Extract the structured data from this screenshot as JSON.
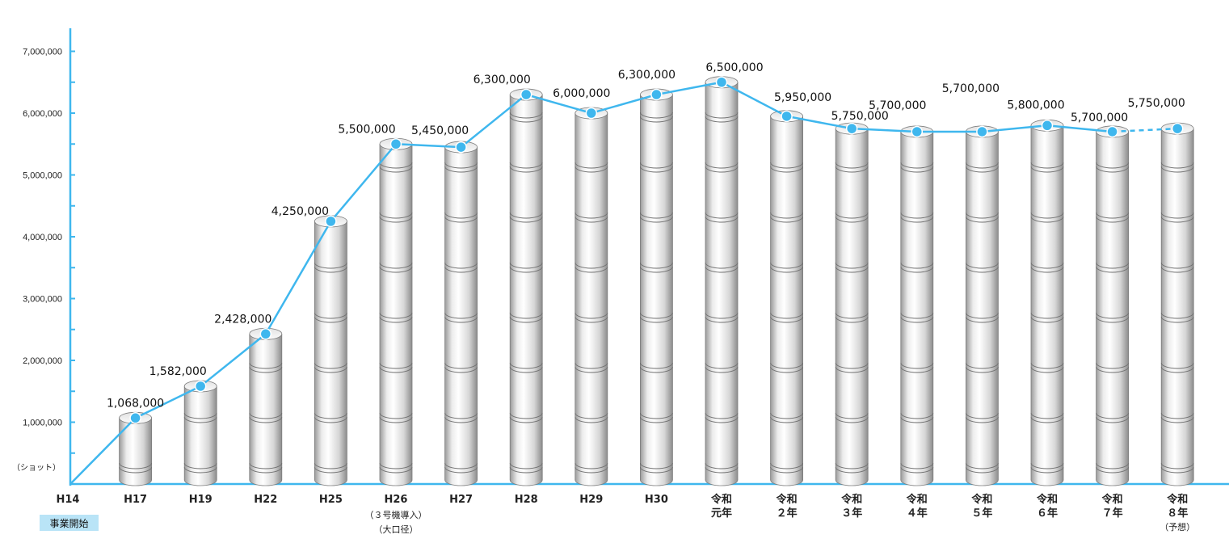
{
  "chart_data": {
    "type": "bar",
    "unit_label": "（ショット）",
    "colors": {
      "line": "#3fb7ee",
      "axis": "#3fb7ee",
      "badge": "#b9e4f7"
    },
    "ylim": [
      0,
      7000000
    ],
    "y_ticks": [
      {
        "value": 1000000,
        "label": "1,000,000"
      },
      {
        "value": 2000000,
        "label": "2,000,000"
      },
      {
        "value": 3000000,
        "label": "3,000,000"
      },
      {
        "value": 4000000,
        "label": "4,000,000"
      },
      {
        "value": 5000000,
        "label": "5,000,000"
      },
      {
        "value": 6000000,
        "label": "6,000,000"
      },
      {
        "value": 7000000,
        "label": "7,000,000"
      }
    ],
    "categories": [
      {
        "label": [
          "H14"
        ],
        "note": [
          "事業開始"
        ],
        "value": 0,
        "value_label": "",
        "bar": false
      },
      {
        "label": [
          "H17"
        ],
        "value": 1068000,
        "value_label": "1,068,000",
        "bar": true
      },
      {
        "label": [
          "H19"
        ],
        "value": 1582000,
        "value_label": "1,582,000",
        "bar": true
      },
      {
        "label": [
          "H22"
        ],
        "value": 2428000,
        "value_label": "2,428,000",
        "bar": true
      },
      {
        "label": [
          "H25"
        ],
        "value": 4250000,
        "value_label": "4,250,000",
        "bar": true
      },
      {
        "label": [
          "H26"
        ],
        "note": [
          "（３号機導入）",
          "（大口径）"
        ],
        "value": 5500000,
        "value_label": "5,500,000",
        "bar": true
      },
      {
        "label": [
          "H27"
        ],
        "value": 5450000,
        "value_label": "5,450,000",
        "bar": true
      },
      {
        "label": [
          "H28"
        ],
        "value": 6300000,
        "value_label": "6,300,000",
        "bar": true
      },
      {
        "label": [
          "H29"
        ],
        "value": 6000000,
        "value_label": "6,000,000",
        "bar": true
      },
      {
        "label": [
          "H30"
        ],
        "value": 6300000,
        "value_label": "6,300,000",
        "bar": true
      },
      {
        "label": [
          "令和",
          "元年"
        ],
        "value": 6500000,
        "value_label": "6,500,000",
        "bar": true
      },
      {
        "label": [
          "令和",
          "２年"
        ],
        "value": 5950000,
        "value_label": "5,950,000",
        "bar": true
      },
      {
        "label": [
          "令和",
          "３年"
        ],
        "value": 5750000,
        "value_label": "5,750,000",
        "bar": true
      },
      {
        "label": [
          "令和",
          "４年"
        ],
        "value": 5700000,
        "value_label": "5,700,000",
        "bar": true
      },
      {
        "label": [
          "令和",
          "５年"
        ],
        "value": 5700000,
        "value_label": "5,700,000",
        "bar": true
      },
      {
        "label": [
          "令和",
          "６年"
        ],
        "value": 5800000,
        "value_label": "5,800,000",
        "bar": true
      },
      {
        "label": [
          "令和",
          "７年"
        ],
        "value": 5700000,
        "value_label": "5,700,000",
        "bar": true
      },
      {
        "label": [
          "令和",
          "８年",
          "（予想）"
        ],
        "value": 5750000,
        "value_label": "5,750,000",
        "bar": true,
        "forecast": true
      }
    ]
  }
}
